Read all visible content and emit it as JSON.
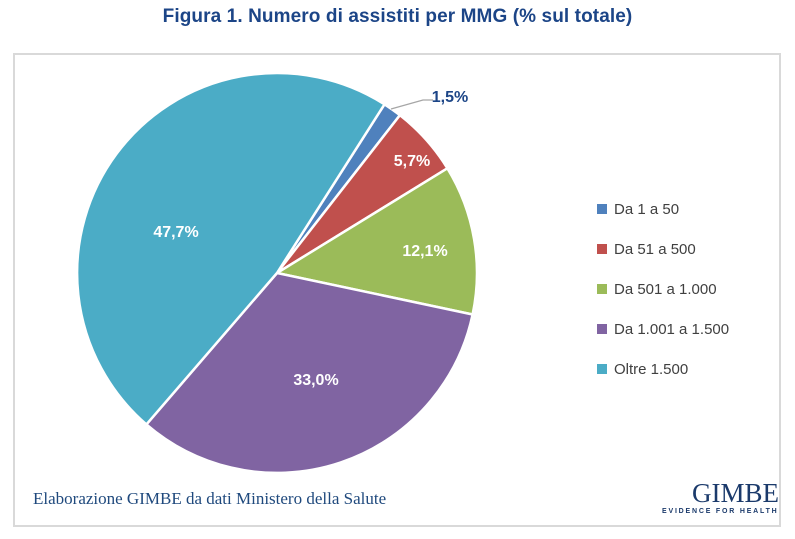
{
  "title": "Figura 1. Numero di assistiti per MMG (% sul totale)",
  "chart_data": {
    "type": "pie",
    "title": "Figura 1. Numero di assistiti per MMG (% sul totale)",
    "categories": [
      "Da 1 a 50",
      "Da 51 a 500",
      "Da 501 a 1.000",
      "Da 1.001 a 1.500",
      "Oltre 1.500"
    ],
    "values": [
      1.5,
      5.7,
      12.1,
      33.0,
      47.7
    ],
    "value_labels": [
      "1,5%",
      "5,7%",
      "12,1%",
      "33,0%",
      "47,7%"
    ],
    "colors": [
      "#4F81BD",
      "#C0504D",
      "#9BBB59",
      "#8064A2",
      "#4BACC6"
    ],
    "start_angle_deg": 32.5,
    "legend_position": "right",
    "slice_separator_color": "#FFFFFF"
  },
  "footer": {
    "source_note": "Elaborazione GIMBE da dati Ministero della Salute"
  },
  "logo": {
    "name": "GIMBE",
    "tagline": "EVIDENCE FOR HEALTH"
  },
  "palette": {
    "title_blue": "#1C4587",
    "legend_text": "#404040",
    "footer_blue": "#1F497D",
    "logo_navy": "#1B3A6B",
    "leader_gray": "#A6A6A6",
    "frame_gray": "#D9D9D9",
    "label_white": "#FFFFFF"
  }
}
